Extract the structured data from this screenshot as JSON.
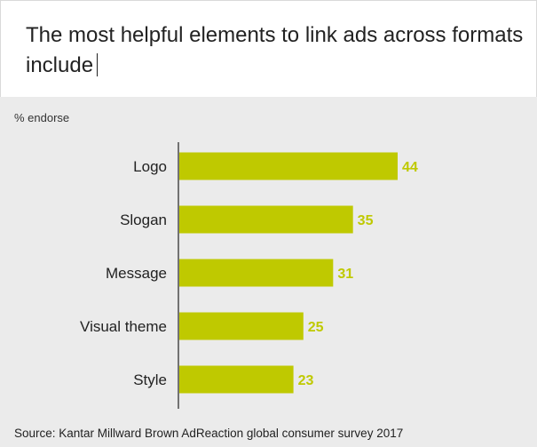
{
  "header": {
    "title": "The most helpful elements to link ads across formats include"
  },
  "chart_data": {
    "type": "bar",
    "orientation": "horizontal",
    "title": "The most helpful elements to link ads across formats include",
    "ylabel": "% endorse",
    "xlabel": "",
    "categories": [
      "Logo",
      "Slogan",
      "Message",
      "Visual theme",
      "Style"
    ],
    "values": [
      44,
      35,
      31,
      25,
      23
    ],
    "xlim": [
      0,
      100
    ],
    "grid": false,
    "bar_color": "#bfc900",
    "label_color": "#bfc900"
  },
  "footer": {
    "source": "Source: Kantar Millward Brown AdReaction global consumer survey 2017"
  }
}
